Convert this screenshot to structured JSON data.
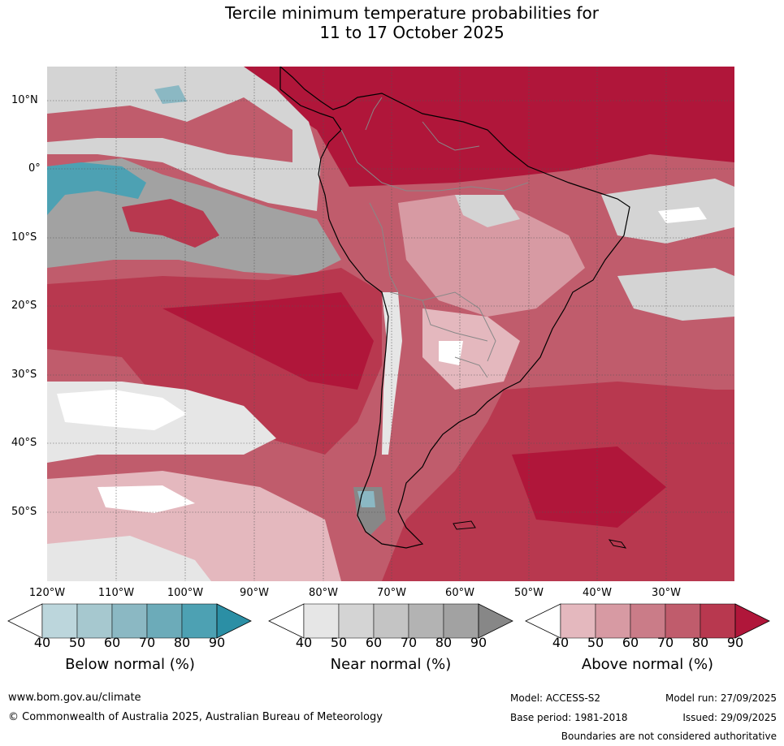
{
  "title_line1": "Tercile minimum temperature probabilities for",
  "title_line2": "11 to 17 October 2025",
  "map": {
    "region": "South America and adjacent oceans",
    "lat_labels": [
      "10°N",
      "0°",
      "10°S",
      "20°S",
      "30°S",
      "40°S",
      "50°S"
    ],
    "lon_labels": [
      "120°W",
      "110°W",
      "100°W",
      "90°W",
      "80°W",
      "70°W",
      "60°W",
      "50°W",
      "40°W",
      "30°W"
    ],
    "note": "Predominantly above-normal probabilities over South America and the South Atlantic; near-normal bands across the equatorial Pacific; small below-normal patches in the eastern Pacific and southern Chile."
  },
  "colorbars": [
    {
      "name": "below",
      "title": "Below normal (%)",
      "ticks": [
        "40",
        "50",
        "60",
        "70",
        "80",
        "90"
      ],
      "colors": [
        "#ffffff",
        "#bcd6dc",
        "#a6c8cf",
        "#8bb8c3",
        "#6cabb9",
        "#4da1b3",
        "#2b8fa5"
      ]
    },
    {
      "name": "near",
      "title": "Near normal (%)",
      "ticks": [
        "40",
        "50",
        "60",
        "70",
        "80",
        "90"
      ],
      "colors": [
        "#ffffff",
        "#e6e6e6",
        "#d4d4d4",
        "#c4c4c4",
        "#b3b3b3",
        "#a2a2a2",
        "#878787"
      ]
    },
    {
      "name": "above",
      "title": "Above normal (%)",
      "ticks": [
        "40",
        "50",
        "60",
        "70",
        "80",
        "90"
      ],
      "colors": [
        "#ffffff",
        "#e4b8be",
        "#d79aa3",
        "#ca7c88",
        "#c05c6c",
        "#b8384f",
        "#b0163a"
      ]
    }
  ],
  "footer": {
    "url": "www.bom.gov.au/climate",
    "copyright": "© Commonwealth of Australia 2025, Australian Bureau of Meteorology",
    "model": "Model: ACCESS-S2",
    "base_period": "Base period: 1981-2018",
    "model_run": "Model run: 27/09/2025",
    "issued": "Issued: 29/09/2025",
    "disclaimer": "Boundaries are not considered authoritative"
  }
}
